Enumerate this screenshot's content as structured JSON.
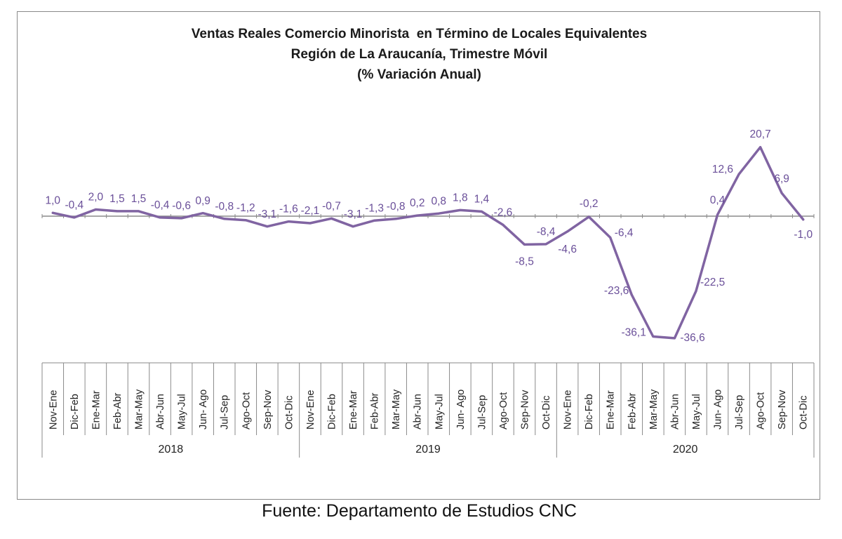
{
  "title_lines": [
    "Ventas Reales Comercio Minorista  en Término de Locales Equivalentes",
    "Región de La Araucanía, Trimestre Móvil",
    "(% Variación Anual)"
  ],
  "source": "Fuente: Departamento de Estudios CNC",
  "colors": {
    "line": "#8064a2",
    "label": "#6a4f99",
    "axis": "#8a8a8a",
    "text": "#222222"
  },
  "chart_data": {
    "type": "line",
    "title": "Ventas Reales Comercio Minorista  en Término de Locales Equivalentes Región de La Araucanía, Trimestre Móvil (% Variación Anual)",
    "categories": [
      "Nov-Ene",
      "Dic-Feb",
      "Ene-Mar",
      "Feb-Abr",
      "Mar-May",
      "Abr-Jun",
      "May-Jul",
      "Jun- Ago",
      "Jul-Sep",
      "Ago-Oct",
      "Sep-Nov",
      "Oct-Dic",
      "Nov-Ene",
      "Dic-Feb",
      "Ene-Mar",
      "Feb-Abr",
      "Mar-May",
      "Abr-Jun",
      "May-Jul",
      "Jun- Ago",
      "Jul-Sep",
      "Ago-Oct",
      "Sep-Nov",
      "Oct-Dic",
      "Nov-Ene",
      "Dic-Feb",
      "Ene-Mar",
      "Feb-Abr",
      "Mar-May",
      "Abr-Jun",
      "May-Jul",
      "Jun- Ago",
      "Jul-Sep",
      "Ago-Oct",
      "Sep-Nov",
      "Oct-Dic"
    ],
    "groups": [
      {
        "label": "2018",
        "count": 12
      },
      {
        "label": "2019",
        "count": 12
      },
      {
        "label": "2020",
        "count": 12
      }
    ],
    "values": [
      1.0,
      -0.4,
      2.0,
      1.5,
      1.5,
      -0.4,
      -0.6,
      0.9,
      -0.8,
      -1.2,
      -3.1,
      -1.6,
      -2.1,
      -0.7,
      -3.1,
      -1.3,
      -0.8,
      0.2,
      0.8,
      1.8,
      1.4,
      -2.6,
      -8.5,
      -8.4,
      -4.6,
      -0.2,
      -6.4,
      -23.6,
      -36.1,
      -36.6,
      -22.5,
      0.4,
      12.6,
      20.7,
      6.9,
      -1.0
    ],
    "value_labels": [
      "1,0",
      "-0,4",
      "2,0",
      "1,5",
      "1,5",
      "-0,4",
      "-0,6",
      "0,9",
      "-0,8",
      "-1,2",
      "-3,1",
      "-1,6",
      "-2,1",
      "-0,7",
      "-3,1",
      "-1,3",
      "-0,8",
      "0,2",
      "0,8",
      "1,8",
      "1,4",
      "-2,6",
      "-8,5",
      "-8,4",
      "-4,6",
      "-0,2",
      "-6,4",
      "-23,6",
      "-36,1",
      "-36,6",
      "-22,5",
      "0,4",
      "12,6",
      "20,7",
      "6,9",
      "-1,0"
    ],
    "ylim": [
      -50,
      30
    ],
    "grid": false,
    "legend": false
  }
}
